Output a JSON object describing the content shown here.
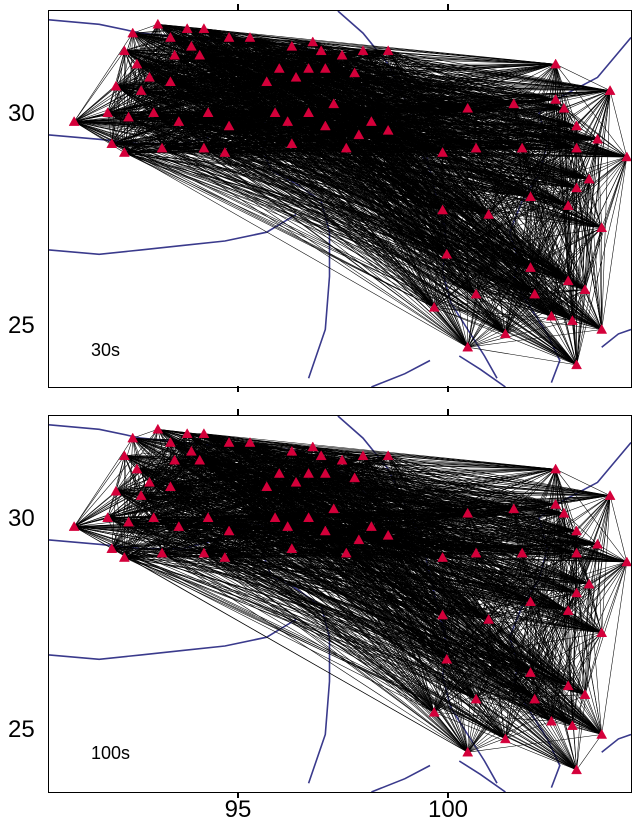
{
  "panels": [
    {
      "id": "top",
      "period_label": "30s"
    },
    {
      "id": "bottom",
      "period_label": "100s"
    }
  ],
  "axes": {
    "y_ticks": [
      "30",
      "25"
    ],
    "x_ticks": [
      "95",
      "100"
    ],
    "lon_range": [
      90.3,
      104.2
    ],
    "lat_range": [
      23.7,
      32.2
    ]
  },
  "style": {
    "station_color": "#d4003a",
    "path_color": "#000000",
    "boundary_color": "#3a3a8c"
  },
  "stations": [
    [
      92.9,
      31.9
    ],
    [
      93.6,
      31.8
    ],
    [
      94.0,
      31.8
    ],
    [
      92.3,
      31.7
    ],
    [
      93.2,
      31.6
    ],
    [
      94.6,
      31.6
    ],
    [
      95.1,
      31.6
    ],
    [
      96.6,
      31.5
    ],
    [
      93.7,
      31.4
    ],
    [
      96.1,
      31.4
    ],
    [
      96.8,
      31.3
    ],
    [
      97.3,
      31.2
    ],
    [
      97.8,
      31.3
    ],
    [
      98.4,
      31.3
    ],
    [
      93.3,
      31.2
    ],
    [
      93.9,
      31.2
    ],
    [
      92.1,
      31.3
    ],
    [
      102.4,
      31.0
    ],
    [
      92.4,
      31.0
    ],
    [
      95.8,
      30.9
    ],
    [
      96.5,
      30.9
    ],
    [
      96.9,
      30.9
    ],
    [
      97.6,
      30.8
    ],
    [
      92.7,
      30.7
    ],
    [
      93.2,
      30.6
    ],
    [
      96.2,
      30.7
    ],
    [
      95.5,
      30.6
    ],
    [
      91.9,
      30.5
    ],
    [
      92.5,
      30.4
    ],
    [
      102.4,
      30.2
    ],
    [
      103.7,
      30.4
    ],
    [
      90.9,
      29.7
    ],
    [
      91.7,
      29.9
    ],
    [
      92.2,
      29.8
    ],
    [
      92.8,
      29.9
    ],
    [
      93.4,
      29.7
    ],
    [
      94.1,
      29.9
    ],
    [
      95.7,
      29.9
    ],
    [
      96.5,
      29.9
    ],
    [
      97.1,
      30.1
    ],
    [
      98.0,
      29.7
    ],
    [
      100.3,
      30.0
    ],
    [
      101.4,
      30.1
    ],
    [
      102.6,
      30.0
    ],
    [
      94.6,
      29.6
    ],
    [
      96.0,
      29.7
    ],
    [
      96.9,
      29.6
    ],
    [
      97.7,
      29.4
    ],
    [
      98.4,
      29.5
    ],
    [
      102.9,
      29.6
    ],
    [
      103.4,
      29.3
    ],
    [
      91.8,
      29.2
    ],
    [
      92.1,
      29.0
    ],
    [
      93.0,
      29.1
    ],
    [
      94.0,
      29.1
    ],
    [
      94.5,
      29.0
    ],
    [
      96.1,
      29.2
    ],
    [
      97.4,
      29.1
    ],
    [
      99.7,
      29.0
    ],
    [
      100.5,
      29.1
    ],
    [
      101.6,
      29.1
    ],
    [
      102.9,
      29.1
    ],
    [
      104.1,
      28.9
    ],
    [
      102.9,
      28.2
    ],
    [
      103.2,
      28.4
    ],
    [
      101.8,
      28.0
    ],
    [
      102.7,
      27.8
    ],
    [
      99.7,
      27.7
    ],
    [
      100.8,
      27.6
    ],
    [
      103.5,
      27.3
    ],
    [
      99.8,
      26.7
    ],
    [
      101.8,
      26.4
    ],
    [
      102.7,
      26.1
    ],
    [
      103.1,
      25.9
    ],
    [
      100.5,
      25.8
    ],
    [
      101.9,
      25.8
    ],
    [
      99.5,
      25.5
    ],
    [
      100.3,
      24.6
    ],
    [
      102.3,
      25.3
    ],
    [
      102.8,
      25.2
    ],
    [
      103.5,
      25.0
    ],
    [
      101.2,
      24.9
    ],
    [
      102.9,
      24.2
    ]
  ]
}
